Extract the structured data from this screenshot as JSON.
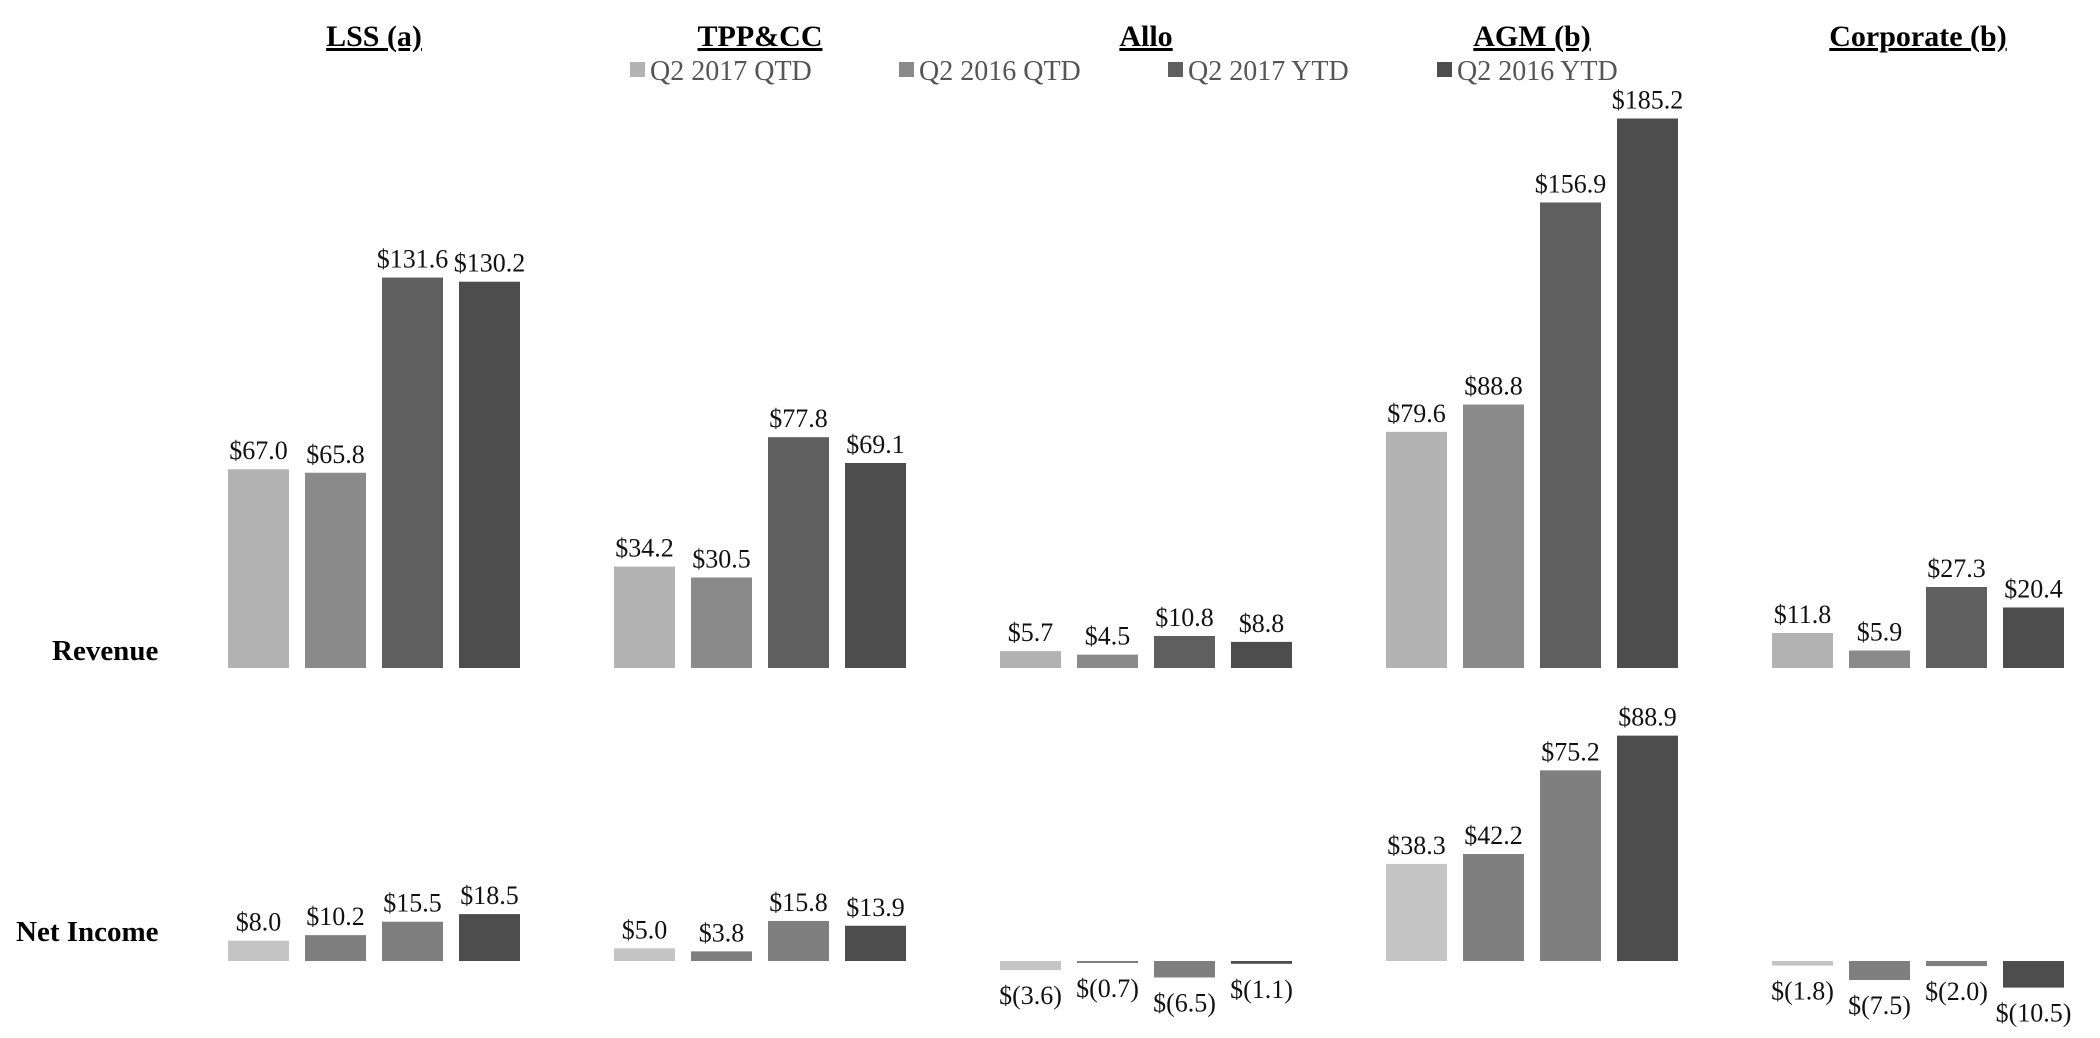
{
  "chart_data": {
    "type": "bar",
    "legend": [
      "Q2 2017 QTD",
      "Q2 2016 QTD",
      "Q2 2017 YTD",
      "Q2 2016 YTD"
    ],
    "row_labels": {
      "revenue": "Revenue",
      "net_income": "Net Income"
    },
    "segments": [
      {
        "name": "LSS (a)",
        "revenue": {
          "values": [
            67.0,
            65.8,
            131.6,
            130.2
          ],
          "labels": [
            "$67.0",
            "$65.8",
            "$131.6",
            "$130.2"
          ]
        },
        "net_income": {
          "values": [
            8.0,
            10.2,
            15.5,
            18.5
          ],
          "labels": [
            "$8.0",
            "$10.2",
            "$15.5",
            "$18.5"
          ]
        }
      },
      {
        "name": "TPP&CC",
        "revenue": {
          "values": [
            34.2,
            30.5,
            77.8,
            69.1
          ],
          "labels": [
            "$34.2",
            "$30.5",
            "$77.8",
            "$69.1"
          ]
        },
        "net_income": {
          "values": [
            5.0,
            3.8,
            15.8,
            13.9
          ],
          "labels": [
            "$5.0",
            "$3.8",
            "$15.8",
            "$13.9"
          ]
        }
      },
      {
        "name": "Allo",
        "revenue": {
          "values": [
            5.7,
            4.5,
            10.8,
            8.8
          ],
          "labels": [
            "$5.7",
            "$4.5",
            "$10.8",
            "$8.8"
          ]
        },
        "net_income": {
          "values": [
            -3.6,
            -0.7,
            -6.5,
            -1.1
          ],
          "labels": [
            "$(3.6)",
            "$(0.7)",
            "$(6.5)",
            "$(1.1)"
          ]
        }
      },
      {
        "name": "AGM (b)",
        "revenue": {
          "values": [
            79.6,
            88.8,
            156.9,
            185.2
          ],
          "labels": [
            "$79.6",
            "$88.8",
            "$156.9",
            "$185.2"
          ]
        },
        "net_income": {
          "values": [
            38.3,
            42.2,
            75.2,
            88.9
          ],
          "labels": [
            "$38.3",
            "$42.2",
            "$75.2",
            "$88.9"
          ]
        }
      },
      {
        "name": "Corporate (b)",
        "revenue": {
          "values": [
            11.8,
            5.9,
            27.3,
            20.4
          ],
          "labels": [
            "$11.8",
            "$5.9",
            "$27.3",
            "$20.4"
          ]
        },
        "net_income": {
          "values": [
            -1.8,
            -7.5,
            -2.0,
            -10.5
          ],
          "labels": [
            "$(1.8)",
            "$(7.5)",
            "$(2.0)",
            "$(10.5)"
          ]
        }
      }
    ],
    "colors": {
      "revenue": [
        "#b3b3b3",
        "#8a8a8a",
        "#5f5f5f",
        "#4d4d4d"
      ],
      "net_income": [
        "#c4c4c4",
        "#7f7f7f",
        "#7f7f7f",
        "#4d4d4d"
      ],
      "legend": [
        "#b3b3b3",
        "#8a8a8a",
        "#5f5f5f",
        "#4d4d4d"
      ]
    }
  }
}
